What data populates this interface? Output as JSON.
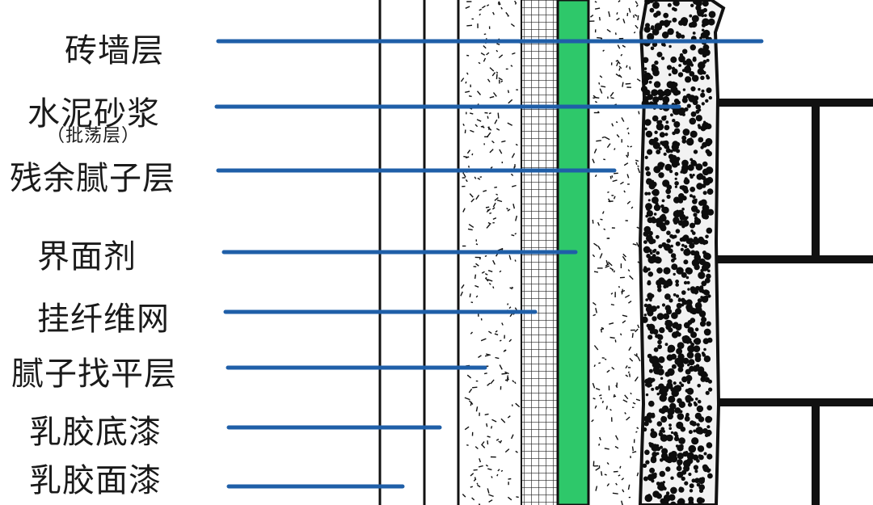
{
  "labels": [
    {
      "id": "brick",
      "text": "砖墙层"
    },
    {
      "id": "mortar",
      "text": "水泥砂浆",
      "sub": "（批荡层）"
    },
    {
      "id": "residual-putty",
      "text": "残余腻子层"
    },
    {
      "id": "interface-agent",
      "text": "界面剂"
    },
    {
      "id": "fiber-mesh",
      "text": "挂纤维网"
    },
    {
      "id": "putty-leveling",
      "text": "腻子找平层"
    },
    {
      "id": "latex-primer",
      "text": "乳胶底漆"
    },
    {
      "id": "latex-topcoat",
      "text": "乳胶面漆"
    }
  ],
  "watermark": "",
  "colors": {
    "leader": "#1f5fa8",
    "interface": "#2ec86a",
    "ink": "#111111",
    "background": "#ffffff"
  }
}
